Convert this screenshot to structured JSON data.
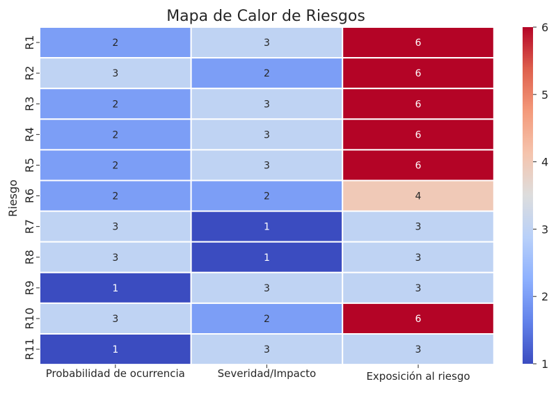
{
  "chart_data": {
    "type": "heatmap",
    "title": "Mapa de Calor de Riesgos",
    "xlabel": "",
    "ylabel": "Riesgo",
    "columns": [
      "Probabilidad de ocurrencia",
      "Severidad/Impacto",
      "Exposición al riesgo"
    ],
    "rows": [
      "R1",
      "R2",
      "R3",
      "R4",
      "R5",
      "R6",
      "R7",
      "R8",
      "R9",
      "R10",
      "R11"
    ],
    "values": [
      [
        2,
        3,
        6
      ],
      [
        3,
        2,
        6
      ],
      [
        2,
        3,
        6
      ],
      [
        2,
        3,
        6
      ],
      [
        2,
        3,
        6
      ],
      [
        2,
        2,
        4
      ],
      [
        3,
        1,
        3
      ],
      [
        3,
        1,
        3
      ],
      [
        1,
        3,
        3
      ],
      [
        3,
        2,
        6
      ],
      [
        1,
        3,
        3
      ]
    ],
    "colorbar": {
      "colormap": "coolwarm",
      "range": [
        1,
        6
      ],
      "ticks": [
        "1",
        "2",
        "3",
        "4",
        "5",
        "6"
      ]
    },
    "annotations": true,
    "grid": false
  }
}
